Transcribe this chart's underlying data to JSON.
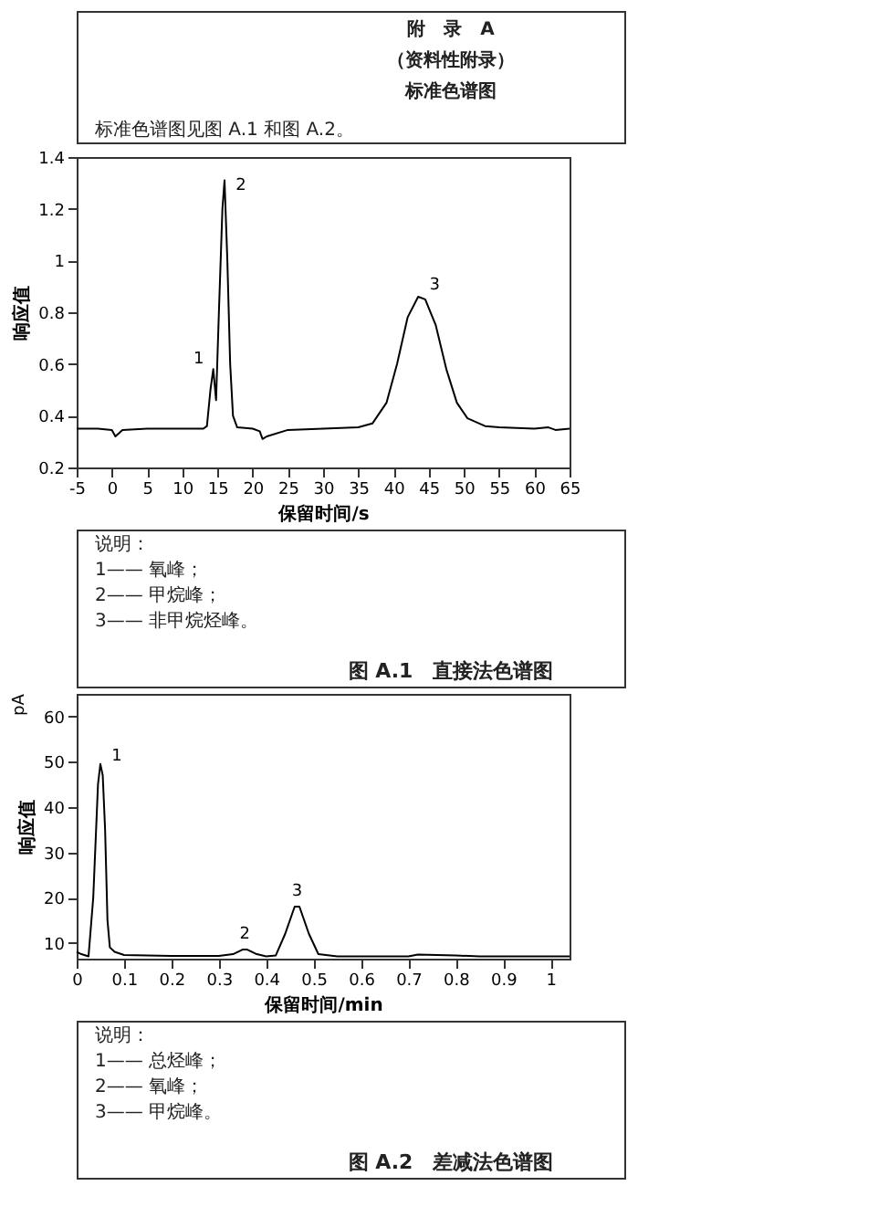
{
  "chart_data": [
    {
      "type": "line",
      "title": "图 A.1　直接法色谱图",
      "xlabel": "保留时间/s",
      "ylabel": "响应值",
      "x": [
        -5,
        -2,
        0,
        0.5,
        1.5,
        5,
        10,
        13,
        13.5,
        14,
        14.4,
        14.8,
        15.2,
        15.7,
        16,
        16.4,
        16.8,
        17.2,
        17.8,
        20,
        21,
        21.4,
        22,
        25,
        30,
        35,
        37,
        39,
        40.5,
        42,
        43.5,
        44.5,
        46,
        47.5,
        49,
        50.5,
        53,
        55,
        60,
        62,
        63,
        65
      ],
      "series": [
        {
          "color": "#000000",
          "values": [
            0.35,
            0.35,
            0.345,
            0.32,
            0.345,
            0.35,
            0.35,
            0.35,
            0.36,
            0.5,
            0.58,
            0.46,
            0.8,
            1.2,
            1.31,
            1.0,
            0.6,
            0.4,
            0.355,
            0.35,
            0.34,
            0.31,
            0.32,
            0.345,
            0.35,
            0.355,
            0.37,
            0.45,
            0.6,
            0.78,
            0.86,
            0.85,
            0.75,
            0.58,
            0.45,
            0.39,
            0.36,
            0.355,
            0.35,
            0.355,
            0.345,
            0.35
          ]
        }
      ],
      "xlim": [
        -5,
        65
      ],
      "xticks": [
        -5,
        0,
        5,
        10,
        15,
        20,
        25,
        30,
        35,
        40,
        45,
        50,
        55,
        60,
        65
      ],
      "ylim": [
        0.2,
        1.4
      ],
      "yticks": [
        0.2,
        0.4,
        0.6,
        0.8,
        1,
        1.2,
        1.4
      ],
      "grid": false,
      "marker": "none",
      "line_style": "solid",
      "annotations": [
        "附　录　A",
        "（资料性附录）",
        "标准色谱图",
        "标准色谱图见图 A.1 和图 A.2。",
        "说明：",
        "1—— 氧峰；",
        "2—— 甲烷峰；",
        "3—— 非甲烷烃峰。",
        {
          "text": "1",
          "x": 14.4,
          "y": 0.58
        },
        {
          "text": "2",
          "x": 16,
          "y": 1.31
        },
        {
          "text": "3",
          "x": 43.5,
          "y": 0.86
        }
      ]
    },
    {
      "type": "line",
      "title": "图 A.2　差减法色谱图",
      "xlabel": "保留时间/min",
      "ylabel": "响应值",
      "x": [
        0,
        0.01,
        0.025,
        0.035,
        0.045,
        0.05,
        0.055,
        0.06,
        0.065,
        0.07,
        0.08,
        0.1,
        0.2,
        0.3,
        0.33,
        0.35,
        0.36,
        0.38,
        0.4,
        0.42,
        0.44,
        0.46,
        0.47,
        0.49,
        0.51,
        0.55,
        0.7,
        0.72,
        0.8,
        0.85,
        1.04
      ],
      "series": [
        {
          "color": "#000000",
          "values": [
            8,
            7.5,
            7,
            20,
            45,
            49.5,
            47,
            35,
            15,
            9,
            8,
            7.3,
            7.1,
            7.1,
            7.5,
            8.5,
            8.5,
            7.5,
            7,
            7.2,
            12,
            18,
            18,
            12,
            7.5,
            7,
            7,
            7.4,
            7.2,
            7,
            7
          ]
        }
      ],
      "xlim": [
        0,
        1.04
      ],
      "xticks": [
        0,
        0.1,
        0.2,
        0.3,
        0.4,
        0.5,
        0.6,
        0.7,
        0.8,
        0.9,
        1
      ],
      "ylim": [
        6.5,
        65
      ],
      "yticks": [
        10,
        20,
        30,
        40,
        50,
        60
      ],
      "grid": false,
      "marker": "none",
      "line_style": "solid",
      "annotations": [
        "pA",
        "说明：",
        "1—— 总烃峰；",
        "2—— 氧峰；",
        "3—— 甲烷峰。",
        {
          "text": "1",
          "x": 0.05,
          "y": 49.5
        },
        {
          "text": "2",
          "x": 0.355,
          "y": 8.5
        },
        {
          "text": "3",
          "x": 0.465,
          "y": 18
        }
      ]
    }
  ]
}
